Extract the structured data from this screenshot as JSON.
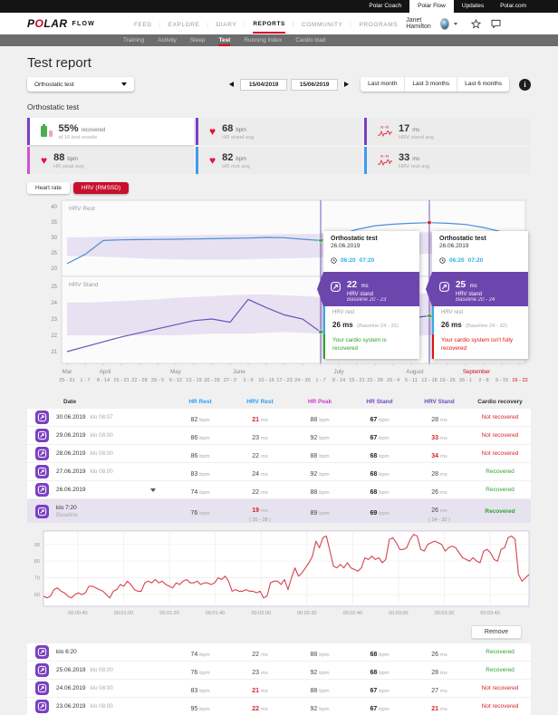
{
  "topbar": {
    "links": [
      "Polar Coach",
      "Polar Flow",
      "Updates",
      "Polar.com"
    ],
    "active": "Polar Flow"
  },
  "nav": {
    "brand": "POLAR",
    "brand_sub": "FLOW",
    "items": [
      "FEED",
      "EXPLORE",
      "DIARY",
      "REPORTS",
      "COMMUNITY",
      "PROGRAMS"
    ],
    "active": "REPORTS",
    "user_name": "Janet Hamilton"
  },
  "subnav": {
    "items": [
      "Training",
      "Activity",
      "Sleep",
      "Test",
      "Running Index",
      "Cardio load"
    ],
    "active": "Test"
  },
  "page": {
    "title": "Test report",
    "section_title": "Orthostatic test"
  },
  "report_select": {
    "value": "Orthostatic test"
  },
  "daterange": {
    "start": "15/04/2019",
    "end": "15/06/2019",
    "presets": [
      "Last month",
      "Last 3 months",
      "Last 6 months"
    ]
  },
  "summary": {
    "cards": [
      {
        "icon": "battery",
        "accent": "#7b3fc4",
        "value": "55%",
        "unit": "recovered",
        "sub": "of 16 test results"
      },
      {
        "icon": "heart",
        "accent": "#7b3fc4",
        "value": "68",
        "unit": "bpm",
        "sub": "HR stand avg"
      },
      {
        "icon": "rr",
        "accent": "#7b3fc4",
        "value": "17",
        "unit": "ms",
        "sub": "HRV stand avg"
      },
      {
        "icon": "heart",
        "accent": "#cf52d3",
        "value": "88",
        "unit": "bpm",
        "sub": "HR peak avg"
      },
      {
        "icon": "heart",
        "accent": "#3f9bf0",
        "value": "82",
        "unit": "bpm",
        "sub": "HR rest avg"
      },
      {
        "icon": "rr",
        "accent": "#3f9bf0",
        "value": "33",
        "unit": "ms",
        "sub": "HRV rest avg"
      }
    ]
  },
  "toggle": {
    "options": [
      "Heart rate",
      "HRV (RMSSD)"
    ],
    "active": "HRV (RMSSD)"
  },
  "chart_data": [
    {
      "type": "line",
      "title": "Orthostatic test weekly trend",
      "band_color": "#cdbce4",
      "panels": [
        {
          "label": "HRV Rest",
          "yticks": [
            40,
            35,
            30,
            25,
            20
          ],
          "line_color": "#4a90d9",
          "values": [
            21.5,
            24.5,
            29,
            29.2,
            29.3,
            29.35,
            29.4,
            29.5,
            29.6,
            29.7,
            29.8,
            30,
            29.9,
            29.4,
            29,
            30.8,
            32.6,
            33.8,
            34.3,
            34.6,
            34.8,
            34.6,
            34.2,
            33.2,
            31.8,
            30.2
          ],
          "band_upper": [
            30,
            30.1,
            30.2,
            30.3,
            30.4,
            30.5,
            30.6,
            30.7,
            30.8,
            30.9,
            31,
            31,
            31.1,
            31.1,
            31.2,
            31.2,
            31.3,
            31.4,
            31.5,
            31.6,
            31.7,
            31.8,
            31.9,
            32,
            32,
            32
          ],
          "band_lower": [
            24,
            23.9,
            23.7,
            23.5,
            23.2,
            23,
            22.9,
            22.8,
            22.8,
            22.8,
            22.9,
            23.1,
            23.2,
            23.3,
            23.5,
            23.7,
            23.9,
            24.1,
            24.3,
            24.5,
            24.7,
            24.9,
            25.1,
            25.3,
            25.4,
            25.5
          ]
        },
        {
          "label": "HRV Stand",
          "yticks": [
            25,
            24,
            23,
            22,
            21
          ],
          "line_color": "#6456bc",
          "values": [
            21,
            21.3,
            21.6,
            21.9,
            22.15,
            22.4,
            22.65,
            22.9,
            23,
            22.8,
            24.2,
            23.7,
            23.25,
            23,
            22.2,
            22.35,
            22.5,
            22.65,
            22.85,
            23.05,
            23.2,
            22.8,
            22.4,
            22,
            21.6,
            21.4
          ],
          "band_upper": [
            24,
            24,
            24.05,
            24.1,
            24.15,
            24.2,
            24.3,
            24.35,
            24.4,
            24.45,
            24.5,
            24.5,
            24.45,
            24.4,
            24.35,
            24.3,
            24.3,
            24.35,
            24.4,
            24.5,
            24.6,
            24.8,
            25,
            25.2,
            25.35,
            25.5
          ],
          "band_lower": [
            22,
            22,
            22,
            22,
            22,
            22,
            22,
            22.05,
            22.1,
            22.1,
            22.1,
            22.15,
            22.2,
            22.15,
            22.1,
            22,
            21.95,
            21.9,
            21.9,
            21.95,
            22,
            22.1,
            22.2,
            22.3,
            22.4,
            22.5
          ]
        }
      ],
      "weeks": [
        "25 - 31",
        "1 - 7",
        "8 - 14",
        "15 - 21",
        "22 - 28",
        "29 - 5",
        "6 - 12",
        "13 - 19",
        "20 - 26",
        "27 - 2",
        "3 - 9",
        "10 - 16",
        "17 - 23",
        "24 - 30",
        "1 - 7",
        "8 - 14",
        "15 - 21",
        "22 - 28",
        "29 - 4",
        "5 - 11",
        "12 - 18",
        "19 - 25",
        "26 - 1",
        "2 - 8",
        "9 - 15",
        "16 - 22"
      ],
      "week_highlight_index": 25,
      "months": [
        {
          "label": "Mar",
          "pos": 0
        },
        {
          "label": "April",
          "pos": 2.1
        },
        {
          "label": "May",
          "pos": 6
        },
        {
          "label": "June",
          "pos": 9.5
        },
        {
          "label": "July",
          "pos": 15
        },
        {
          "label": "August",
          "pos": 19.2
        },
        {
          "label": "September",
          "pos": 22.6,
          "color": "#d10027"
        }
      ],
      "highlight_color": "#d10027",
      "cursors": [
        {
          "week": 14,
          "rest": 29,
          "stand": 22.2,
          "rest_dot": "#3db53d",
          "stand_dot": "#3db53d"
        },
        {
          "week": 20,
          "rest": 34.8,
          "stand": 23.2,
          "rest_dot": "#d42a2a",
          "stand_dot": "#3db53d"
        }
      ]
    },
    {
      "type": "line",
      "title": "Heart rate during orthostatic test",
      "line_color": "#d8414e",
      "yticks": [
        90,
        80,
        70,
        60
      ],
      "ylim": [
        53,
        98
      ],
      "t_range": [
        25,
        237
      ],
      "xticks": [
        {
          "label": "00:00:40",
          "t": 40
        },
        {
          "label": "00:01:00",
          "t": 60
        },
        {
          "label": "00:01:20",
          "t": 80
        },
        {
          "label": "00:01:40",
          "t": 100
        },
        {
          "label": "00:02:00",
          "t": 120
        },
        {
          "label": "00:02:20",
          "t": 140
        },
        {
          "label": "00:02:40",
          "t": 160
        },
        {
          "label": "00:03:00",
          "t": 180
        },
        {
          "label": "00:03:20",
          "t": 200
        },
        {
          "label": "00:03:40",
          "t": 220
        }
      ],
      "values": [
        59,
        58,
        59,
        63,
        64,
        62,
        61,
        59,
        58,
        60,
        61,
        60,
        61,
        65,
        65,
        64,
        63,
        62,
        60,
        58,
        62,
        63,
        66,
        65,
        68,
        66,
        63,
        62,
        62,
        67,
        68,
        67,
        69,
        67,
        68,
        66,
        65,
        64,
        67,
        66,
        68,
        69,
        67,
        67,
        68,
        66,
        67,
        67,
        66,
        67,
        70,
        69,
        71,
        68,
        62,
        63,
        62,
        62,
        63,
        62,
        62,
        61,
        62,
        58,
        59,
        67,
        68,
        68,
        66,
        69,
        63,
        70,
        76,
        71,
        73,
        76,
        79,
        83,
        92,
        88,
        94,
        95,
        86,
        77,
        76,
        78,
        76,
        79,
        76,
        75,
        74,
        76,
        82,
        81,
        83,
        81,
        82,
        79,
        81,
        93,
        94,
        91,
        87,
        87,
        88,
        93,
        96,
        95,
        87,
        86,
        90,
        91,
        92,
        91,
        90,
        86,
        88,
        89,
        88,
        85,
        82,
        81,
        80,
        82,
        80,
        79,
        86,
        87,
        85,
        81,
        80,
        87,
        88,
        94,
        95,
        93,
        72,
        68,
        70,
        72
      ]
    }
  ],
  "tooltips": [
    {
      "title": "Orthostatic test",
      "date": "26.06.2019",
      "times": [
        "06:20",
        "07:20"
      ],
      "hrv_stand_value": "22",
      "hrv_stand_unit": "ms",
      "hrv_stand_label": "HRV stand",
      "hrv_stand_baseline": "Baseline 20 - 23",
      "hrv_rest_label": "HRV rest",
      "hrv_rest_value": "26 ms",
      "hrv_rest_baseline": "(Baseline 24 - 32)",
      "message": "Your cardio system is recovered",
      "status": "recovered"
    },
    {
      "title": "Orthostatic test",
      "date": "26.06.2019",
      "times": [
        "06:20",
        "07:20"
      ],
      "hrv_stand_value": "25",
      "hrv_stand_unit": "ms",
      "hrv_stand_label": "HRV stand",
      "hrv_stand_baseline": "Baseline 20 - 24",
      "hrv_rest_label": "HRV rest",
      "hrv_rest_value": "26 ms",
      "hrv_rest_baseline": "(Baseline 24 - 32)",
      "message": "Your cardio system isn't fully recovered",
      "status": "not_recovered"
    }
  ],
  "table": {
    "headers": [
      "Date",
      "HR Rest",
      "HRV Rest",
      "HR Peak",
      "HR Stand",
      "HRV Stand",
      "Cardio recovery"
    ],
    "header_colors": [
      "#333333",
      "#2a9df4",
      "#2a9df4",
      "#cb3ecb",
      "#6d4bbe",
      "#6d4bbe",
      "#333333"
    ],
    "units": [
      "bpm",
      "ms",
      "bpm",
      "bpm",
      "ms"
    ],
    "rows": [
      {
        "date": "30.06.2019",
        "time": "klo 08:07",
        "values": [
          "82",
          "21",
          "88",
          "67",
          "28"
        ],
        "alerts": [
          false,
          true,
          false,
          false,
          false
        ],
        "recovery": "Not recovered",
        "recovered": false
      },
      {
        "date": "29.06.2019",
        "time": "klo 08:00",
        "values": [
          "86",
          "23",
          "92",
          "67",
          "33"
        ],
        "alerts": [
          false,
          false,
          false,
          false,
          true
        ],
        "recovery": "Not recovered",
        "recovered": false
      },
      {
        "date": "28.06.2019",
        "time": "klo 08:00",
        "values": [
          "86",
          "22",
          "88",
          "68",
          "34"
        ],
        "alerts": [
          false,
          false,
          false,
          false,
          true
        ],
        "recovery": "Not recovered",
        "recovered": false
      },
      {
        "date": "27.06.2019",
        "time": "klo 08:00",
        "values": [
          "83",
          "24",
          "92",
          "68",
          "28"
        ],
        "alerts": [
          false,
          false,
          false,
          false,
          false
        ],
        "recovery": "Recovered",
        "recovered": true
      },
      {
        "date": "26.06.2019",
        "time": "",
        "expand": true,
        "values": [
          "74",
          "22",
          "88",
          "68",
          "26"
        ],
        "alerts": [
          false,
          false,
          false,
          false,
          false
        ],
        "recovery": "Recovered",
        "recovered": true
      },
      {
        "date": "klo 7:20",
        "time": "Baseline",
        "baseline": true,
        "values": [
          "76",
          "19",
          "89",
          "69",
          "26"
        ],
        "subvalues": [
          "",
          "( 20 - 28 )",
          "",
          "",
          "( 24 - 32 )"
        ],
        "alerts": [
          false,
          true,
          false,
          false,
          false
        ],
        "recovery": "Recovered",
        "recovered": true
      }
    ]
  },
  "rr_section": {
    "remove_label": "Remove"
  },
  "table2": {
    "rows": [
      {
        "date": "klo 6:20",
        "time": "",
        "values": [
          "74",
          "22",
          "88",
          "68",
          "26"
        ],
        "alerts": [
          false,
          false,
          false,
          false,
          false
        ],
        "recovery": "Recovered",
        "recovered": true
      },
      {
        "date": "25.06.2019",
        "time": "klo 08:00",
        "values": [
          "76",
          "23",
          "92",
          "68",
          "28"
        ],
        "alerts": [
          false,
          false,
          false,
          false,
          false
        ],
        "recovery": "Recovered",
        "recovered": true
      },
      {
        "date": "24.06.2019",
        "time": "klo 08:00",
        "values": [
          "83",
          "21",
          "88",
          "67",
          "27"
        ],
        "alerts": [
          false,
          true,
          false,
          false,
          false
        ],
        "recovery": "Not recovered",
        "recovered": false
      },
      {
        "date": "23.06.2019",
        "time": "klo 08:00",
        "values": [
          "95",
          "22",
          "92",
          "67",
          "21"
        ],
        "alerts": [
          false,
          true,
          false,
          false,
          true
        ],
        "recovery": "Not recovered",
        "recovered": false
      }
    ]
  },
  "colors": {
    "accent_red": "#c8102e",
    "alert": "#d9232e",
    "ok_green": "#31a031",
    "purple": "#6d46ad"
  }
}
